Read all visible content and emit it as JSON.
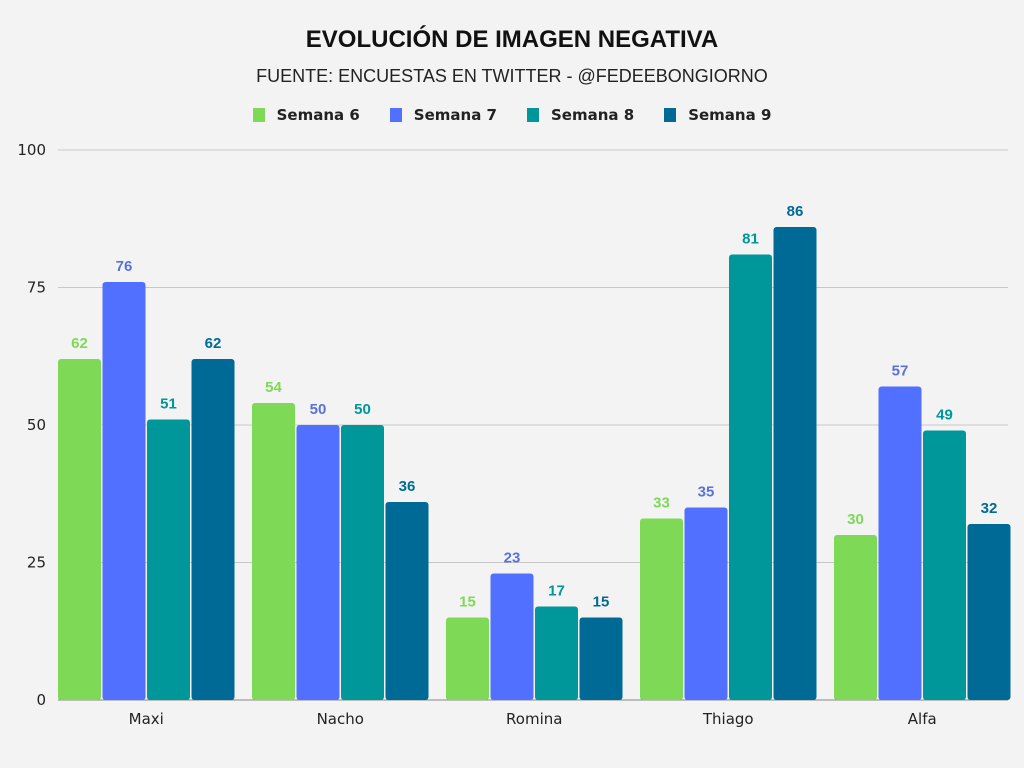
{
  "chart_data": {
    "type": "bar",
    "title": "EVOLUCIÓN DE IMAGEN NEGATIVA",
    "subtitle": "FUENTE: ENCUESTAS EN TWITTER - @FEDEEBONGIORNO",
    "categories": [
      "Maxi",
      "Nacho",
      "Romina",
      "Thiago",
      "Alfa"
    ],
    "series": [
      {
        "name": "Semana 6",
        "color": "#7ed957",
        "label_color": "#7ed957",
        "values": [
          62,
          54,
          15,
          33,
          30
        ]
      },
      {
        "name": "Semana 7",
        "color": "#5170ff",
        "label_color": "#5a72d8",
        "values": [
          76,
          50,
          23,
          35,
          57
        ]
      },
      {
        "name": "Semana 8",
        "color": "#00979a",
        "label_color": "#00979a",
        "values": [
          51,
          50,
          17,
          81,
          49
        ]
      },
      {
        "name": "Semana 9",
        "color": "#006a96",
        "label_color": "#006a96",
        "values": [
          62,
          36,
          15,
          86,
          32
        ]
      }
    ],
    "ylim": [
      0,
      100
    ],
    "yticks": [
      0,
      25,
      50,
      75,
      100
    ],
    "grid": true,
    "legend": "top-center",
    "xlabel": "",
    "ylabel": ""
  }
}
